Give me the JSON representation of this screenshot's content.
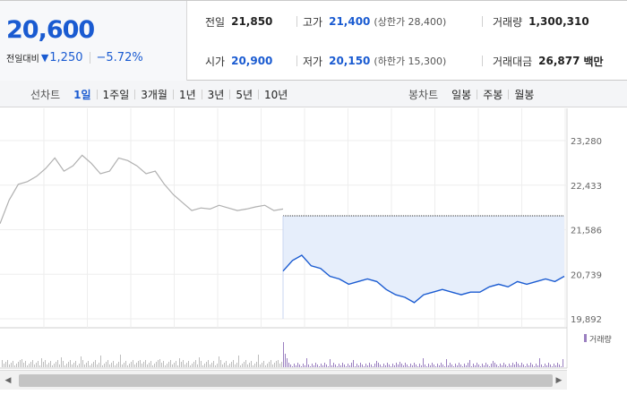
{
  "quote": {
    "price": "20,600",
    "change_label": "전일대비",
    "change_icon": "down-triangle-icon",
    "change_value": "1,250",
    "change_rate": "−5.72%",
    "prev_close_label": "전일",
    "prev_close": "21,850",
    "high_label": "고가",
    "high": "21,400",
    "upper_limit": "(상한가 28,400)",
    "volume_label": "거래량",
    "volume": "1,300,310",
    "open_label": "시가",
    "open": "20,900",
    "low_label": "저가",
    "low": "20,150",
    "lower_limit": "(하한가 15,300)",
    "amount_label": "거래대금",
    "amount": "26,877",
    "amount_unit": "백만"
  },
  "toolbar": {
    "line_title": "선차트",
    "line_periods": [
      "1일",
      "1주일",
      "3개월",
      "1년",
      "3년",
      "5년",
      "10년"
    ],
    "active_period": "1일",
    "candle_title": "봉차트",
    "candle_periods": [
      "일봉",
      "주봉",
      "월봉"
    ]
  },
  "colors": {
    "accent": "#1a5bd1",
    "prev_line": "#b0b0b0",
    "fill": "#e6eefb",
    "volume_bar": "#9a7fc0",
    "volume_prev": "#bdbdbd"
  },
  "chart_data": {
    "type": "line",
    "y_ticks": [
      "23,280",
      "22,433",
      "21,586",
      "20,739",
      "19,892"
    ],
    "ylim": [
      19892,
      23280
    ],
    "reference_value": 21850,
    "volume_legend": "거래량",
    "series": [
      {
        "values": [
          21700,
          22150,
          22450,
          22500,
          22600,
          22750,
          22950,
          22700,
          22800,
          23000,
          22850,
          22650,
          22700,
          22950,
          22900,
          22800,
          22650,
          22700,
          22450,
          22250,
          22100,
          21950,
          22000,
          21980,
          22050,
          22000,
          21950,
          21980,
          22020,
          22050,
          21950,
          21980
        ]
      },
      {
        "values": [
          20800,
          21000,
          21100,
          20900,
          20850,
          20700,
          20650,
          20550,
          20600,
          20650,
          20600,
          20450,
          20350,
          20300,
          20200,
          20350,
          20400,
          20450,
          20400,
          20350,
          20400,
          20400,
          20500,
          20550,
          20500,
          20600,
          20550,
          20600,
          20650,
          20600,
          20700
        ]
      }
    ]
  }
}
